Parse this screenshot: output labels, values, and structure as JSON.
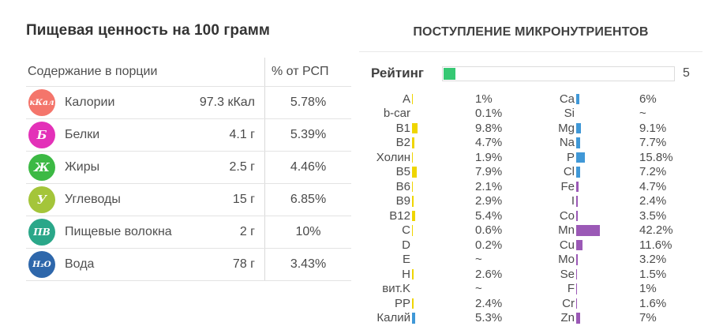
{
  "left_panel": {
    "title": "Пищевая ценность на 100 грамм",
    "table": {
      "header": {
        "col1": "Содержание в порции",
        "col2": "% от РСП"
      },
      "rows": [
        {
          "icon_text": "кКал",
          "icon_color": "#f4756b",
          "label": "Калории",
          "value": "97.3 кКал",
          "percent": "5.78%"
        },
        {
          "icon_text": "Б",
          "icon_color": "#e331b8",
          "label": "Белки",
          "value": "4.1 г",
          "percent": "5.39%"
        },
        {
          "icon_text": "Ж",
          "icon_color": "#3cb944",
          "label": "Жиры",
          "value": "2.5 г",
          "percent": "4.46%"
        },
        {
          "icon_text": "У",
          "icon_color": "#a4c53a",
          "label": "Углеводы",
          "value": "15 г",
          "percent": "6.85%"
        },
        {
          "icon_text": "ПВ",
          "icon_color": "#2aa789",
          "label": "Пищевые волокна",
          "value": "2 г",
          "percent": "10%"
        },
        {
          "icon_text": "H₂O",
          "icon_color": "#2e67ab",
          "label": "Вода",
          "value": "78 г",
          "percent": "3.43%"
        }
      ]
    }
  },
  "right_panel": {
    "title": "ПОСТУПЛЕНИЕ МИКРОНУТРИЕНТОВ",
    "rating": {
      "label": "Рейтинг",
      "value": "5",
      "percent": 5,
      "bar_color": "#36c873"
    },
    "micronutrients": {
      "left": [
        {
          "label": "A",
          "display": "1%",
          "percent": 1.0,
          "color": "#efd500"
        },
        {
          "label": "b-car",
          "display": "0.1%",
          "percent": 0.1,
          "color": "#efd500"
        },
        {
          "label": "B1",
          "display": "9.8%",
          "percent": 9.8,
          "color": "#efd500"
        },
        {
          "label": "B2",
          "display": "4.7%",
          "percent": 4.7,
          "color": "#efd500"
        },
        {
          "label": "Холин",
          "display": "1.9%",
          "percent": 1.9,
          "color": "#efd500"
        },
        {
          "label": "B5",
          "display": "7.9%",
          "percent": 7.9,
          "color": "#efd500"
        },
        {
          "label": "B6",
          "display": "2.1%",
          "percent": 2.1,
          "color": "#efd500"
        },
        {
          "label": "B9",
          "display": "2.9%",
          "percent": 2.9,
          "color": "#efd500"
        },
        {
          "label": "B12",
          "display": "5.4%",
          "percent": 5.4,
          "color": "#efd500"
        },
        {
          "label": "C",
          "display": "0.6%",
          "percent": 0.6,
          "color": "#efd500"
        },
        {
          "label": "D",
          "display": "0.2%",
          "percent": 0.2,
          "color": "#efd500"
        },
        {
          "label": "E",
          "display": "~",
          "percent": null,
          "color": null
        },
        {
          "label": "H",
          "display": "2.6%",
          "percent": 2.6,
          "color": "#efd500"
        },
        {
          "label": "вит.K",
          "display": "~",
          "percent": null,
          "color": null
        },
        {
          "label": "PP",
          "display": "2.4%",
          "percent": 2.4,
          "color": "#efd500"
        },
        {
          "label": "Калий",
          "display": "5.3%",
          "percent": 5.3,
          "color": "#4098d7"
        }
      ],
      "right": [
        {
          "label": "Ca",
          "display": "6%",
          "percent": 6.0,
          "color": "#4098d7"
        },
        {
          "label": "Si",
          "display": "~",
          "percent": null,
          "color": null
        },
        {
          "label": "Mg",
          "display": "9.1%",
          "percent": 9.1,
          "color": "#4098d7"
        },
        {
          "label": "Na",
          "display": "7.7%",
          "percent": 7.7,
          "color": "#4098d7"
        },
        {
          "label": "P",
          "display": "15.8%",
          "percent": 15.8,
          "color": "#4098d7"
        },
        {
          "label": "Cl",
          "display": "7.2%",
          "percent": 7.2,
          "color": "#4098d7"
        },
        {
          "label": "Fe",
          "display": "4.7%",
          "percent": 4.7,
          "color": "#9b59b6"
        },
        {
          "label": "I",
          "display": "2.4%",
          "percent": 2.4,
          "color": "#9b59b6"
        },
        {
          "label": "Co",
          "display": "3.5%",
          "percent": 3.5,
          "color": "#9b59b6"
        },
        {
          "label": "Mn",
          "display": "42.2%",
          "percent": 42.2,
          "color": "#9b59b6"
        },
        {
          "label": "Cu",
          "display": "11.6%",
          "percent": 11.6,
          "color": "#9b59b6"
        },
        {
          "label": "Mo",
          "display": "3.2%",
          "percent": 3.2,
          "color": "#9b59b6"
        },
        {
          "label": "Se",
          "display": "1.5%",
          "percent": 1.5,
          "color": "#9b59b6"
        },
        {
          "label": "F",
          "display": "1%",
          "percent": 1.0,
          "color": "#9b59b6"
        },
        {
          "label": "Cr",
          "display": "1.6%",
          "percent": 1.6,
          "color": "#9b59b6"
        },
        {
          "label": "Zn",
          "display": "7%",
          "percent": 7.0,
          "color": "#9b59b6"
        }
      ]
    }
  }
}
